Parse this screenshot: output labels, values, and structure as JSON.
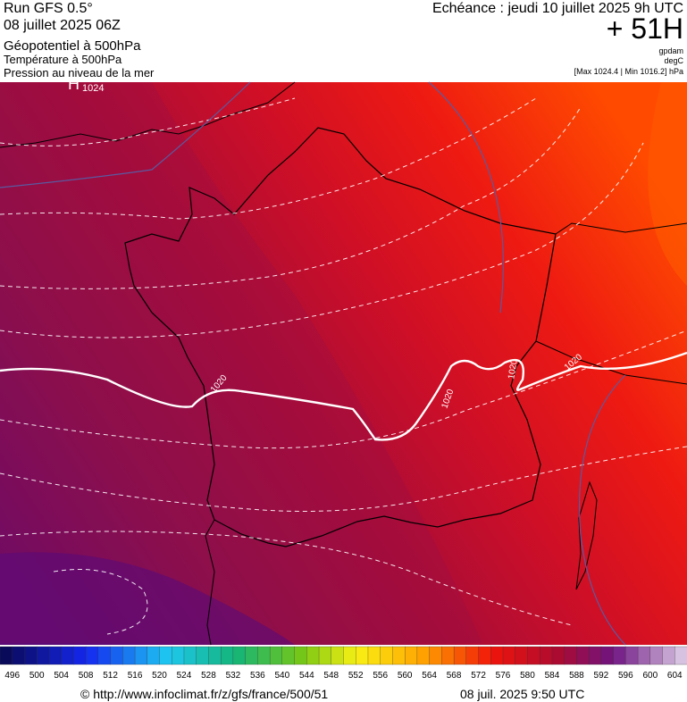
{
  "header": {
    "run": "Run GFS 0.5°",
    "run_date": "08 juillet 2025 06Z",
    "param1": "Géopotentiel à 500hPa",
    "param2": "Température à 500hPa",
    "param3": "Pression au niveau de la mer",
    "forecast": "Echéance : jeudi 10 juillet 2025 9h UTC",
    "lead": "+ 51H",
    "unit1": "gpdam",
    "unit2": "degC",
    "range": "[Max 1024.4 | Min 1016.2] hPa"
  },
  "map": {
    "high_symbol": "H",
    "high_value": "1024",
    "isobar_labels": [
      "1020",
      "1020",
      "1020",
      "1020"
    ]
  },
  "colorbar": {
    "labels": [
      496,
      500,
      504,
      508,
      512,
      516,
      520,
      524,
      528,
      532,
      536,
      540,
      544,
      548,
      552,
      556,
      560,
      564,
      568,
      572,
      576,
      580,
      584,
      588,
      592,
      596,
      600,
      604
    ]
  },
  "footer": {
    "source": "© http://www.infoclimat.fr/z/gfs/france/500/51",
    "timestamp": "08 juil. 2025  9:50 UTC"
  }
}
